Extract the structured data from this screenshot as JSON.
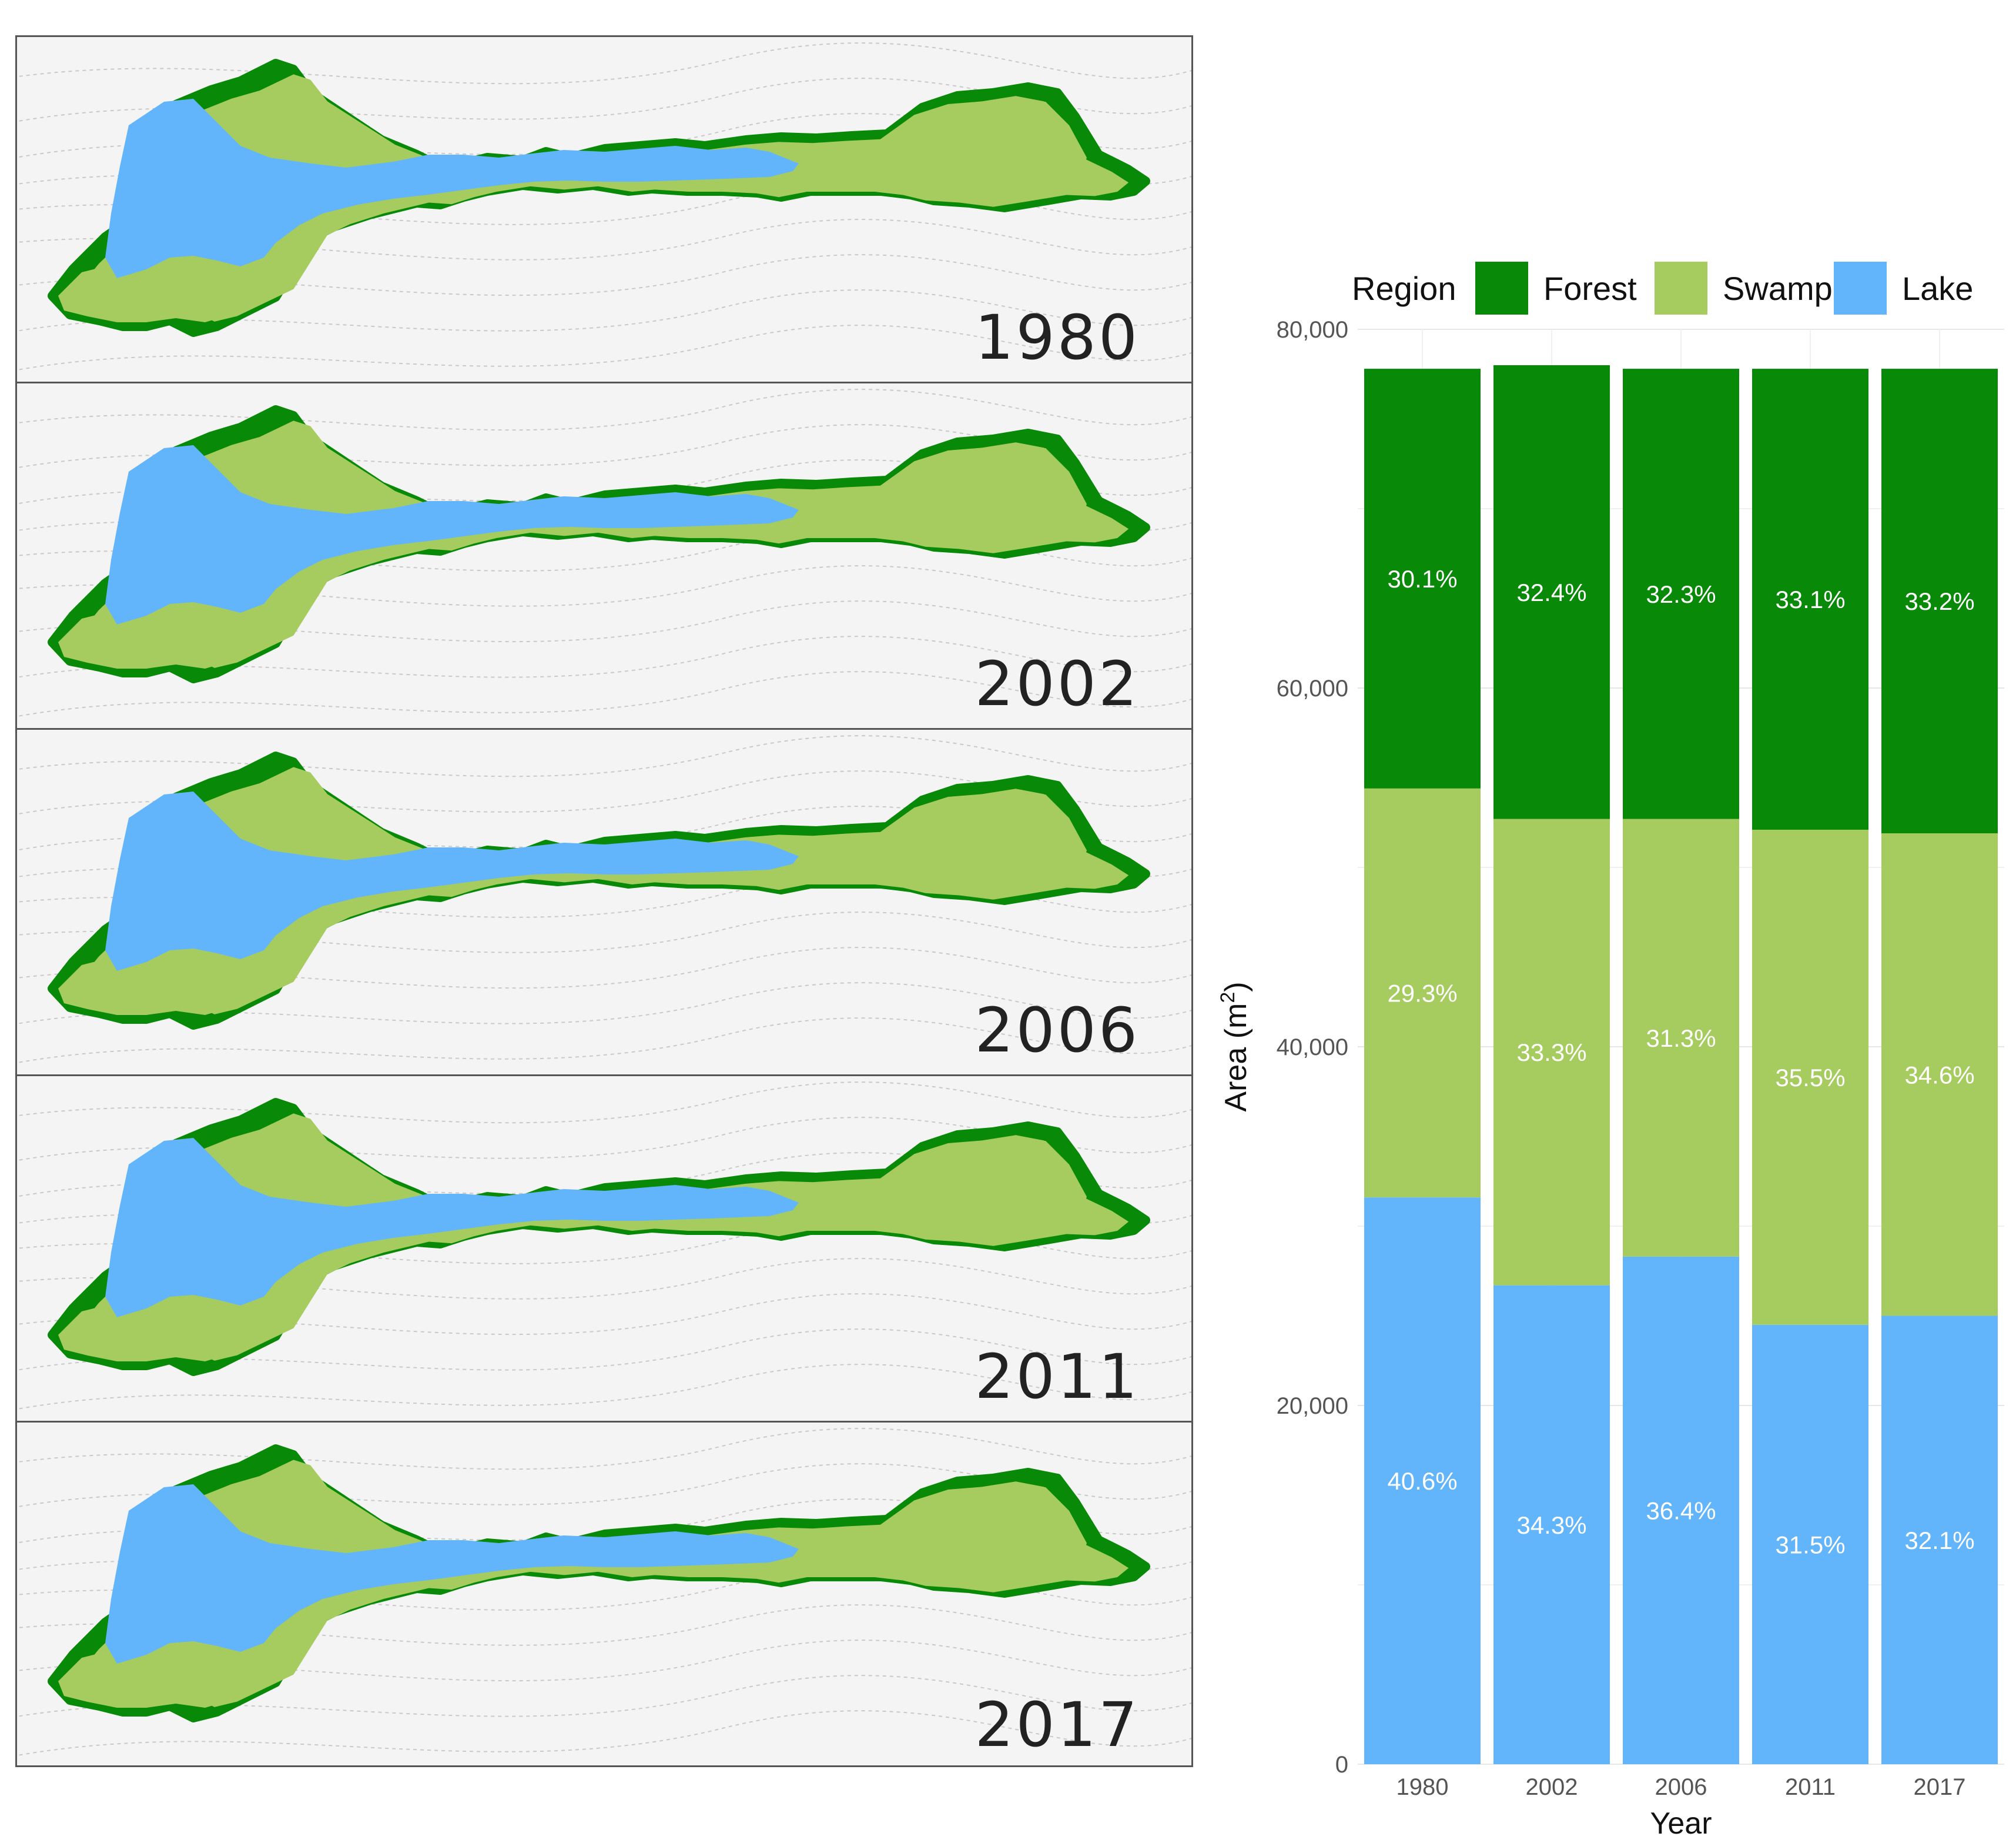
{
  "maps": {
    "panels": [
      {
        "year": "1980"
      },
      {
        "year": "2002"
      },
      {
        "year": "2006"
      },
      {
        "year": "2011"
      },
      {
        "year": "2017"
      }
    ],
    "colors": {
      "forest": "#098908",
      "swamp": "#a6cc5f",
      "lake": "#63b5fb",
      "background": "#f4f4f4",
      "contour": "#c9c9c9"
    }
  },
  "chart_data": {
    "type": "bar",
    "stacked": true,
    "categories": [
      "1980",
      "2002",
      "2006",
      "2011",
      "2017"
    ],
    "series": [
      {
        "name": "Lake",
        "color": "#63b5fb",
        "values": [
          31600,
          26700,
          28300,
          24500,
          25000
        ],
        "labels": [
          "40.6%",
          "34.3%",
          "36.4%",
          "31.5%",
          "32.1%"
        ]
      },
      {
        "name": "Swamp",
        "color": "#a6cc5f",
        "values": [
          22800,
          26000,
          24400,
          27600,
          26900
        ],
        "labels": [
          "29.3%",
          "33.3%",
          "31.3%",
          "35.5%",
          "34.6%"
        ]
      },
      {
        "name": "Forest",
        "color": "#098908",
        "values": [
          23400,
          25300,
          25100,
          25700,
          25900
        ],
        "labels": [
          "30.1%",
          "32.4%",
          "32.3%",
          "33.1%",
          "33.2%"
        ]
      }
    ],
    "legend_title": "Region",
    "legend_order": [
      "Forest",
      "Swamp",
      "Lake"
    ],
    "legend_position": "top",
    "xlabel": "Year",
    "ylabel": "Area (m",
    "ylabel_sup": "2",
    "ylabel_close": ")",
    "ylim": [
      0,
      80000
    ],
    "yticks": [
      0,
      20000,
      40000,
      60000,
      80000
    ],
    "ytick_labels": [
      "0",
      "20,000",
      "40,000",
      "60,000",
      "80,000"
    ]
  }
}
